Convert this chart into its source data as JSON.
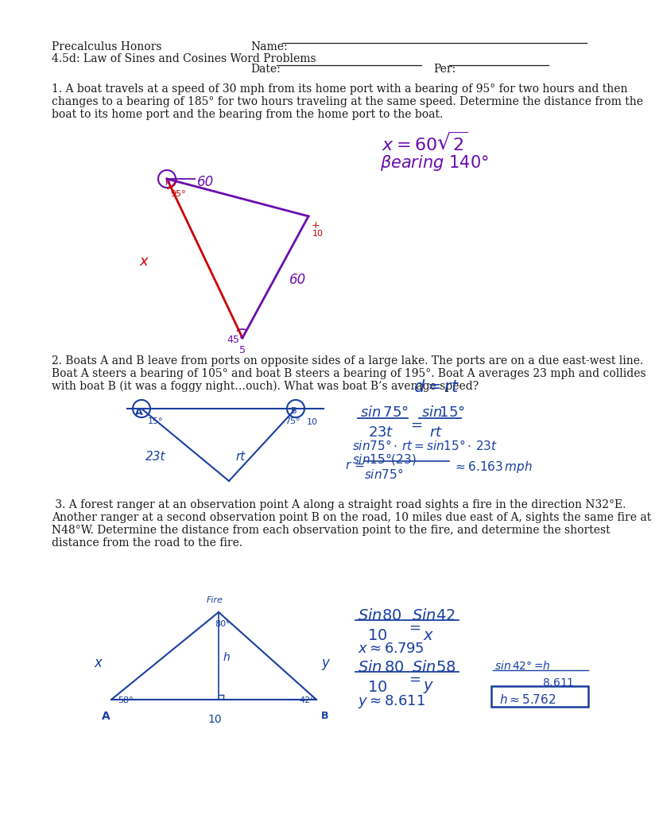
{
  "title_left": "Precalculus Honors",
  "title_right": "Name:",
  "subtitle_left": "4.5d: Law of Sines and Cosines Word Problems",
  "date_label": "Date:",
  "per_label": "Per:",
  "problem1_lines": [
    "1. A boat travels at a speed of 30 mph from its home port with a bearing of 95° for two hours and then",
    "changes to a bearing of 185° for two hours traveling at the same speed. Determine the distance from the",
    "boat to its home port and the bearing from the home port to the boat."
  ],
  "problem2_lines": [
    "2. Boats A and B leave from ports on opposite sides of a large lake. The ports are on a due east-west line.",
    "Boat A steers a bearing of 105° and boat B steers a bearing of 195°. Boat A averages 23 mph and collides",
    "with boat B (it was a foggy night…ouch). What was boat B’s average speed?"
  ],
  "problem3_lines": [
    " 3. A forest ranger at an observation point A along a straight road sights a fire in the direction N32°E.",
    "Another ranger at a second observation point B on the road, 10 miles due east of A, sights the same fire at",
    "N48°W. Determine the distance from each observation point to the fire, and determine the shortest",
    "distance from the road to the fire."
  ],
  "bg_color": "#ffffff",
  "text_color": "#1a1a1a",
  "blue": "#1a3fa0",
  "purple": "#6a0dad",
  "red": "#cc0000"
}
